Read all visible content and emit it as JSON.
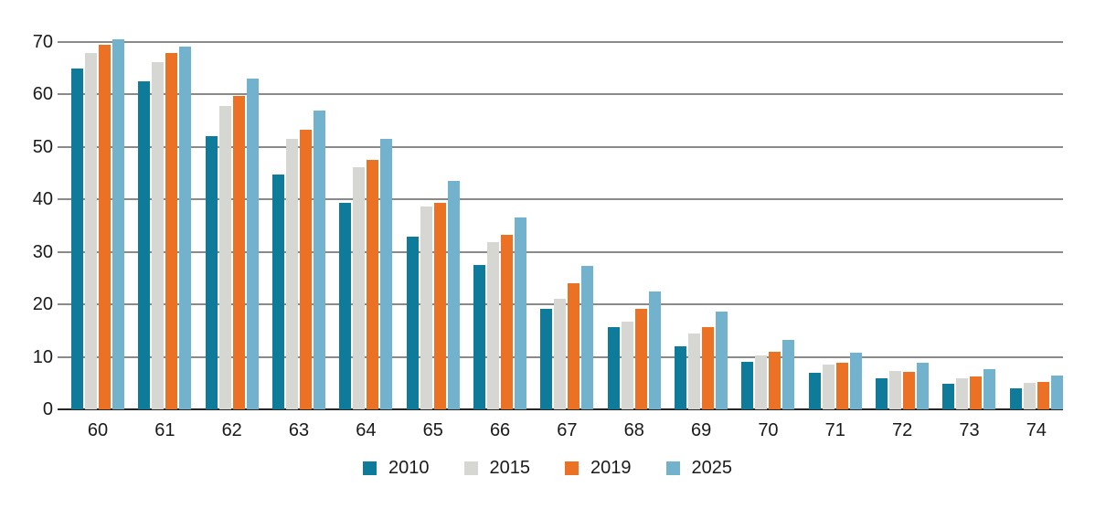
{
  "chart_data": {
    "type": "bar",
    "title": "",
    "xlabel": "",
    "ylabel": "",
    "categories": [
      "60",
      "61",
      "62",
      "63",
      "64",
      "65",
      "66",
      "67",
      "68",
      "69",
      "70",
      "71",
      "72",
      "73",
      "74"
    ],
    "series": [
      {
        "name": "2010",
        "color": "#0e7b9b",
        "values": [
          65.0,
          62.6,
          52.1,
          44.7,
          39.4,
          33.0,
          27.6,
          19.1,
          15.6,
          12.1,
          9.0,
          7.0,
          6.0,
          4.9,
          4.0
        ]
      },
      {
        "name": "2015",
        "color": "#d6d6d3",
        "values": [
          67.9,
          66.2,
          57.9,
          51.5,
          46.1,
          38.6,
          31.8,
          21.1,
          16.8,
          14.5,
          10.2,
          8.5,
          7.3,
          5.9,
          5.0
        ]
      },
      {
        "name": "2019",
        "color": "#eb7125",
        "values": [
          69.4,
          67.9,
          59.8,
          53.3,
          47.6,
          39.4,
          33.3,
          24.0,
          19.2,
          15.6,
          10.9,
          8.8,
          7.2,
          6.3,
          5.2
        ]
      },
      {
        "name": "2025",
        "color": "#73b2cc",
        "values": [
          70.6,
          69.2,
          63.0,
          57.0,
          51.6,
          43.5,
          36.5,
          27.3,
          22.4,
          18.7,
          13.3,
          10.8,
          8.9,
          7.7,
          6.4
        ]
      }
    ],
    "ylim": [
      0,
      70
    ],
    "yticks": [
      0,
      10,
      20,
      30,
      40,
      50,
      60,
      70
    ],
    "grid": true,
    "legend_position": "bottom-center"
  },
  "colors": {
    "gridline": "#8a8a8a",
    "baseline": "#262626",
    "text": "#1a1a1a",
    "background": "#ffffff"
  }
}
